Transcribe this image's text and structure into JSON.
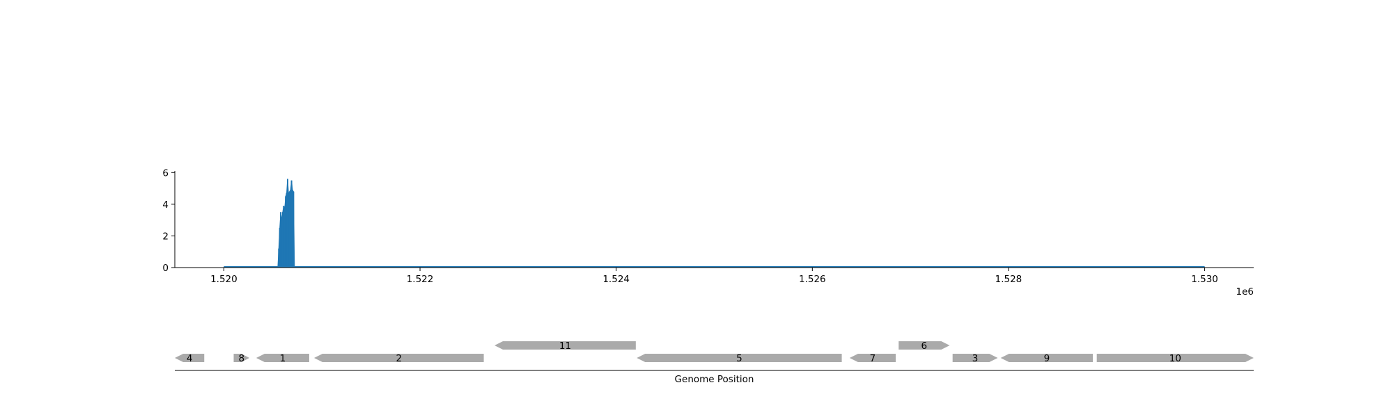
{
  "chart_data": [
    {
      "type": "area",
      "title": "",
      "xlabel": "",
      "ylabel": "",
      "offset_label": "1e6",
      "xlim": [
        1519500,
        1530500
      ],
      "ylim": [
        0,
        6.1
      ],
      "xticks": [
        1520000,
        1522000,
        1524000,
        1526000,
        1528000,
        1530000
      ],
      "xtick_labels": [
        "1.520",
        "1.522",
        "1.524",
        "1.526",
        "1.528",
        "1.530"
      ],
      "yticks": [
        0,
        2,
        4,
        6
      ],
      "ytick_labels": [
        "0",
        "2",
        "4",
        "6"
      ],
      "color": "#1f77b4",
      "grid": false,
      "series": [
        {
          "x": [
            1520000,
            1520550,
            1520560,
            1520570,
            1520580,
            1520590,
            1520600,
            1520610,
            1520620,
            1520630,
            1520640,
            1520650,
            1520660,
            1520670,
            1520680,
            1520690,
            1520700,
            1520710,
            1520720,
            1520730,
            1530000
          ],
          "values": [
            0,
            0,
            1.2,
            2.5,
            3.5,
            3.0,
            3.5,
            3.9,
            3.7,
            4.5,
            4.7,
            5.6,
            4.6,
            4.8,
            4.9,
            5.5,
            4.9,
            4.8,
            0,
            0,
            0
          ]
        }
      ]
    },
    {
      "type": "gene-track",
      "xlabel": "Genome Position",
      "genes": [
        {
          "label": "4",
          "start": 1519500,
          "end": 1519800,
          "strand": "-",
          "row": 0
        },
        {
          "label": "8",
          "start": 1520100,
          "end": 1520260,
          "strand": "+",
          "row": 0
        },
        {
          "label": "1",
          "start": 1520330,
          "end": 1520870,
          "strand": "-",
          "row": 0
        },
        {
          "label": "2",
          "start": 1520920,
          "end": 1522650,
          "strand": "-",
          "row": 0
        },
        {
          "label": "11",
          "start": 1522760,
          "end": 1524200,
          "strand": "-",
          "row": 1
        },
        {
          "label": "5",
          "start": 1524210,
          "end": 1526300,
          "strand": "-",
          "row": 0
        },
        {
          "label": "7",
          "start": 1526380,
          "end": 1526850,
          "strand": "-",
          "row": 0
        },
        {
          "label": "6",
          "start": 1526880,
          "end": 1527400,
          "strand": "+",
          "row": 1
        },
        {
          "label": "3",
          "start": 1527430,
          "end": 1527890,
          "strand": "+",
          "row": 0
        },
        {
          "label": "9",
          "start": 1527920,
          "end": 1528860,
          "strand": "-",
          "row": 0
        },
        {
          "label": "10",
          "start": 1528900,
          "end": 1530500,
          "strand": "+",
          "row": 0
        }
      ],
      "color": "#aaaaaa"
    }
  ]
}
